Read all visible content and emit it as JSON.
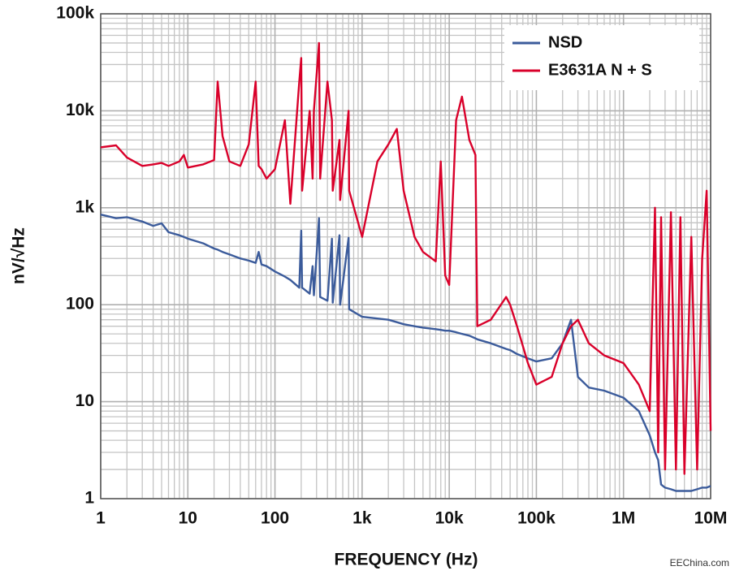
{
  "chart_data": {
    "type": "line",
    "xlabel": "FREQUENCY (Hz)",
    "ylabel": "nV/√Hz",
    "watermark": "EEChina.com",
    "xscale": "log",
    "yscale": "log",
    "grid": true,
    "legend": "upper right",
    "xlim": [
      1,
      10000000
    ],
    "ylim": [
      1,
      100000
    ],
    "xticks": [
      1,
      10,
      100,
      {
        "value": 1000,
        "label": "1k"
      },
      {
        "value": 10000,
        "label": "10k"
      },
      {
        "value": 100000,
        "label": "100k"
      },
      {
        "value": 1000000,
        "label": "1M"
      },
      {
        "value": 10000000,
        "label": "10M"
      }
    ],
    "yticks": [
      1,
      10,
      100,
      {
        "value": 1000,
        "label": "1k"
      },
      {
        "value": 10000,
        "label": "10k"
      },
      {
        "value": 100000,
        "label": "100k"
      }
    ],
    "x": [
      1,
      1.5,
      2,
      3,
      4,
      5,
      6,
      8,
      9,
      10,
      15,
      20,
      22,
      25,
      30,
      40,
      50,
      60,
      65,
      70,
      80,
      100,
      130,
      150,
      190,
      200,
      205,
      250,
      270,
      280,
      320,
      330,
      400,
      450,
      460,
      550,
      560,
      700,
      710,
      1000,
      1500,
      2000,
      2500,
      3000,
      4000,
      5000,
      7000,
      8000,
      9000,
      10000,
      12000,
      14000,
      17000,
      20000,
      21000,
      30000,
      45000,
      50000,
      60000,
      80000,
      100000,
      150000,
      200000,
      250000,
      300000,
      400000,
      600000,
      1000000,
      1500000,
      2000000,
      2300000,
      2500000,
      2700000,
      3000000,
      3500000,
      4000000,
      4500000,
      5000000,
      6000000,
      7000000,
      8000000,
      9000000,
      10000000
    ],
    "series": [
      {
        "name": "NSD",
        "color": "#3b5b9b",
        "values": [
          850,
          780,
          800,
          720,
          650,
          690,
          560,
          520,
          500,
          480,
          430,
          380,
          370,
          350,
          330,
          300,
          285,
          270,
          350,
          260,
          250,
          220,
          195,
          180,
          150,
          580,
          150,
          130,
          250,
          125,
          780,
          120,
          110,
          480,
          105,
          520,
          100,
          490,
          90,
          75,
          72,
          70,
          66,
          63,
          60,
          58,
          56,
          55,
          54,
          54,
          52,
          50,
          48,
          45,
          44,
          40,
          35,
          34,
          31,
          28,
          26,
          28,
          40,
          70,
          18,
          14,
          13,
          11,
          8,
          4.5,
          3,
          2.5,
          1.4,
          1.3,
          1.25,
          1.2,
          1.2,
          1.2,
          1.2,
          1.25,
          1.3,
          1.3,
          1.35
        ]
      },
      {
        "name": "E3631A N + S",
        "color": "#d9002a",
        "values": [
          4200,
          4400,
          3300,
          2700,
          2800,
          2900,
          2700,
          3000,
          3500,
          2600,
          2800,
          3100,
          20000,
          5500,
          3000,
          2700,
          4500,
          20000,
          2700,
          2500,
          2000,
          2500,
          8000,
          1100,
          20000,
          35000,
          1500,
          10000,
          2000,
          10000,
          50000,
          2000,
          20000,
          8000,
          1500,
          5000,
          1200,
          10000,
          1500,
          500,
          3000,
          4500,
          6500,
          1500,
          500,
          350,
          280,
          3000,
          200,
          160,
          8000,
          14000,
          5000,
          3500,
          60,
          70,
          120,
          100,
          60,
          25,
          15,
          18,
          40,
          60,
          70,
          40,
          30,
          25,
          15,
          8,
          1000,
          3,
          800,
          2,
          900,
          2,
          800,
          1.8,
          500,
          2,
          300,
          1500,
          5
        ]
      }
    ]
  }
}
